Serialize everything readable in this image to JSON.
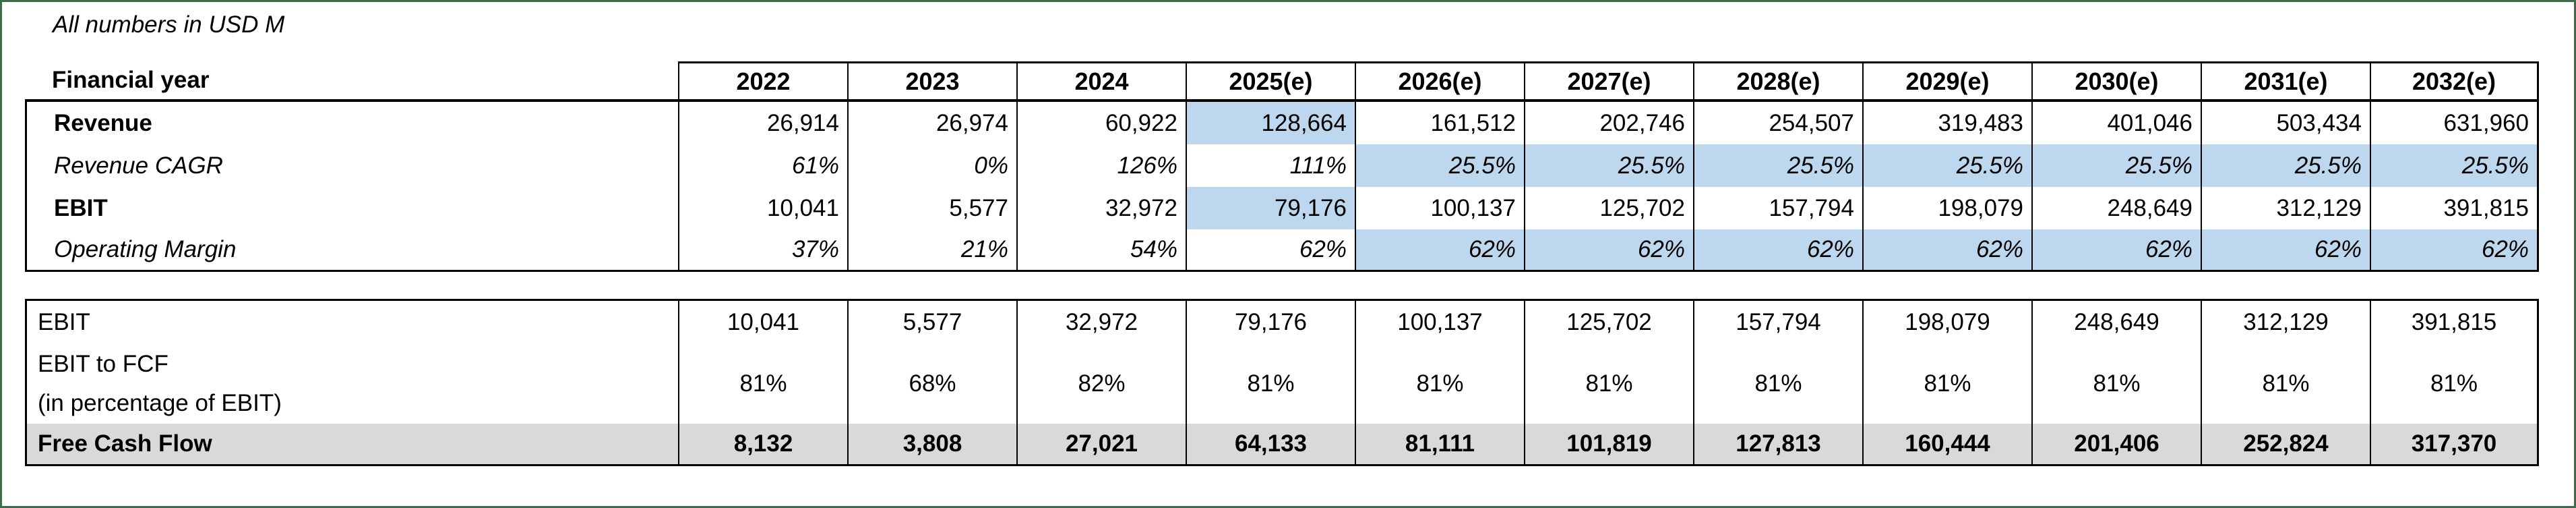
{
  "page": {
    "note": "All numbers in USD M"
  },
  "colors": {
    "outer_border_green": "#3E6B4C",
    "highlight_blue": "#BDD7EE",
    "fcf_row_gray": "#D9D9D9",
    "border_black": "#000000"
  },
  "t1": {
    "header_label": "Financial year",
    "years": [
      "2022",
      "2023",
      "2024",
      "2025(e)",
      "2026(e)",
      "2027(e)",
      "2028(e)",
      "2029(e)",
      "2030(e)",
      "2031(e)",
      "2032(e)"
    ],
    "rows": [
      {
        "label": "Revenue",
        "style": "bold",
        "values": [
          "26,914",
          "26,974",
          "60,922",
          "128,664",
          "161,512",
          "202,746",
          "254,507",
          "319,483",
          "401,046",
          "503,434",
          "631,960"
        ],
        "highlighted_cols": [
          3
        ]
      },
      {
        "label": "Revenue CAGR",
        "style": "italic",
        "values": [
          "61%",
          "0%",
          "126%",
          "111%",
          "25.5%",
          "25.5%",
          "25.5%",
          "25.5%",
          "25.5%",
          "25.5%",
          "25.5%"
        ],
        "highlighted_cols": [
          4,
          5,
          6,
          7,
          8,
          9,
          10
        ]
      },
      {
        "label": "EBIT",
        "style": "bold",
        "values": [
          "10,041",
          "5,577",
          "32,972",
          "79,176",
          "100,137",
          "125,702",
          "157,794",
          "198,079",
          "248,649",
          "312,129",
          "391,815"
        ],
        "highlighted_cols": [
          3
        ]
      },
      {
        "label": "Operating Margin",
        "style": "italic",
        "values": [
          "37%",
          "21%",
          "54%",
          "62%",
          "62%",
          "62%",
          "62%",
          "62%",
          "62%",
          "62%",
          "62%"
        ],
        "highlighted_cols": [
          4,
          5,
          6,
          7,
          8,
          9,
          10
        ]
      }
    ]
  },
  "t2": {
    "rows": [
      {
        "label": "EBIT",
        "values": [
          "10,041",
          "5,577",
          "32,972",
          "79,176",
          "100,137",
          "125,702",
          "157,794",
          "198,079",
          "248,649",
          "312,129",
          "391,815"
        ]
      },
      {
        "label_line1": "EBIT to FCF",
        "label_line2": "(in percentage of EBIT)",
        "values": [
          "81%",
          "68%",
          "82%",
          "81%",
          "81%",
          "81%",
          "81%",
          "81%",
          "81%",
          "81%",
          "81%"
        ]
      },
      {
        "label": "Free Cash Flow",
        "style": "bold",
        "values": [
          "8,132",
          "3,808",
          "27,021",
          "64,133",
          "81,111",
          "101,819",
          "127,813",
          "160,444",
          "201,406",
          "252,824",
          "317,370"
        ]
      }
    ]
  }
}
